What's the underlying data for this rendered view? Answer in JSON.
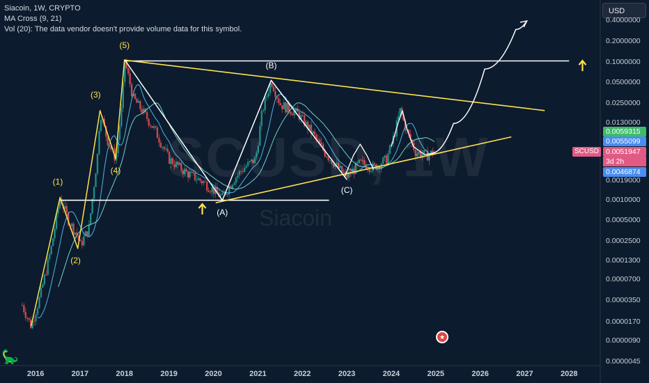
{
  "legend": {
    "symbol_line": "Siacoin, 1W, CRYPTO",
    "ma_line": "MA Cross (9, 21)",
    "vol_line": "Vol (20): The data vendor doesn't provide volume data for this symbol."
  },
  "currency_button": "USD",
  "watermark": {
    "symbol": "SCUSD, 1W",
    "name": "Siacoin"
  },
  "price_badges": {
    "green": "0.0059315",
    "blue": "0.0055099",
    "symbol": "SCUSD",
    "current": "0.0051947",
    "countdown": "3d 2h",
    "low": "0.0046874"
  },
  "colors": {
    "background": "#0d1b2e",
    "candle_up": "#26a69a",
    "candle_down": "#ef5350",
    "ma_fast": "#4db6e8",
    "ma_slow": "#6fd3c8",
    "yellow_line": "#ffe34d",
    "white_line": "#ffffff",
    "badge_green": "#3dbb6a",
    "badge_blue": "#4a8df0",
    "badge_red": "#e05a84"
  },
  "chart_data": {
    "type": "line",
    "scale": "log",
    "title": "Siacoin, 1W, CRYPTO",
    "x_ticks": [
      "2016",
      "2017",
      "2018",
      "2019",
      "2020",
      "2021",
      "2022",
      "2023",
      "2024",
      "2025",
      "2026",
      "2027",
      "2028"
    ],
    "y_ticks": [
      "0.4000000",
      "0.2000000",
      "0.1000000",
      "0.0500000",
      "0.0250000",
      "0.0130000",
      "0.0070000",
      "0.0035000",
      "0.0019000",
      "0.0010000",
      "0.0005000",
      "0.0002500",
      "0.0001300",
      "0.0000700",
      "0.0000350",
      "0.0000170",
      "0.0000090",
      "0.0000045"
    ],
    "ylim": [
      4.5e-06,
      0.4
    ],
    "price_path": [
      [
        2015.7,
        3e-05
      ],
      [
        2015.9,
        1.5e-05
      ],
      [
        2016.1,
        4e-05
      ],
      [
        2016.35,
        0.0002
      ],
      [
        2016.55,
        0.0011
      ],
      [
        2016.75,
        0.0005
      ],
      [
        2016.95,
        0.0003
      ],
      [
        2017.0,
        0.00022
      ],
      [
        2017.2,
        0.0004
      ],
      [
        2017.4,
        0.005
      ],
      [
        2017.45,
        0.02
      ],
      [
        2017.6,
        0.008
      ],
      [
        2017.8,
        0.004
      ],
      [
        2017.95,
        0.025
      ],
      [
        2018.0,
        0.11
      ],
      [
        2018.2,
        0.03
      ],
      [
        2018.4,
        0.02
      ],
      [
        2018.7,
        0.01
      ],
      [
        2019.0,
        0.004
      ],
      [
        2019.4,
        0.0025
      ],
      [
        2019.8,
        0.0018
      ],
      [
        2020.2,
        0.0011
      ],
      [
        2020.45,
        0.002
      ],
      [
        2020.7,
        0.003
      ],
      [
        2020.95,
        0.004
      ],
      [
        2021.1,
        0.02
      ],
      [
        2021.3,
        0.055
      ],
      [
        2021.5,
        0.025
      ],
      [
        2021.9,
        0.018
      ],
      [
        2022.2,
        0.01
      ],
      [
        2022.5,
        0.005
      ],
      [
        2022.8,
        0.003
      ],
      [
        2023.0,
        0.0022
      ],
      [
        2023.3,
        0.0035
      ],
      [
        2023.6,
        0.003
      ],
      [
        2023.9,
        0.004
      ],
      [
        2024.05,
        0.008
      ],
      [
        2024.2,
        0.02
      ],
      [
        2024.35,
        0.01
      ],
      [
        2024.55,
        0.005
      ],
      [
        2024.8,
        0.0045
      ],
      [
        2025.0,
        0.0052
      ]
    ],
    "annotations": {
      "wave_labels": [
        "(1)",
        "(2)",
        "(3)",
        "(4)",
        "(5)"
      ],
      "correction_labels": [
        "(A)",
        "(B)",
        "(C)"
      ],
      "wave_points": [
        [
          2016.55,
          0.0011
        ],
        [
          2016.95,
          0.0002
        ],
        [
          2017.45,
          0.02
        ],
        [
          2017.8,
          0.004
        ],
        [
          2018.0,
          0.11
        ]
      ],
      "correction_points": [
        [
          2020.2,
          0.001
        ],
        [
          2021.3,
          0.055
        ],
        [
          2023.0,
          0.002
        ]
      ],
      "resistance_line": [
        [
          2018.0,
          0.105
        ],
        [
          2028.0,
          0.105
        ]
      ],
      "support_line": [
        [
          2016.55,
          0.001
        ],
        [
          2022.6,
          0.001
        ]
      ],
      "upper_trendline": [
        [
          2018.0,
          0.108
        ],
        [
          2027.45,
          0.02
        ]
      ],
      "lower_trendline": [
        [
          2020.05,
          0.00092
        ],
        [
          2026.7,
          0.0083
        ]
      ],
      "projection_path": [
        [
          2024.9,
          0.0048
        ],
        [
          2025.4,
          0.013
        ],
        [
          2026.1,
          0.08
        ],
        [
          2026.8,
          0.3
        ],
        [
          2027.05,
          0.4
        ]
      ]
    }
  }
}
